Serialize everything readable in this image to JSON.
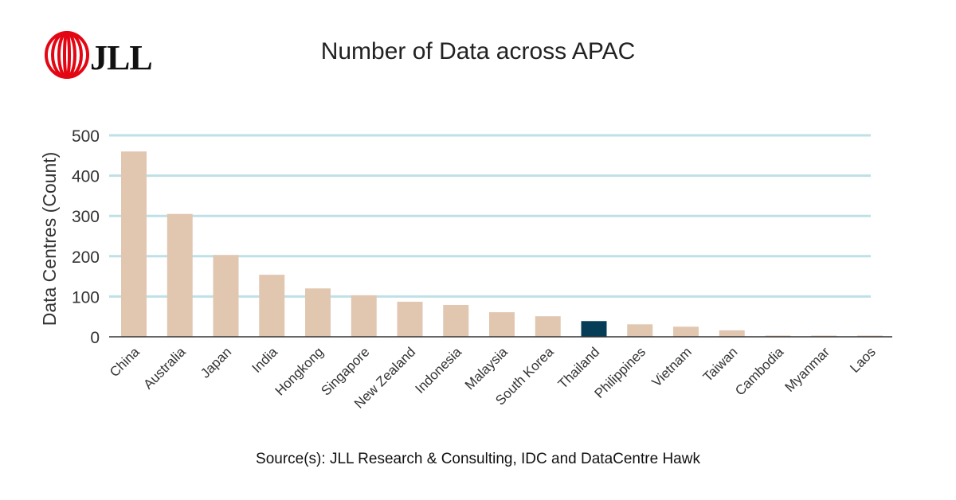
{
  "brand": {
    "logo_text": "JLL",
    "logo_color": "#e30613"
  },
  "chart_data": {
    "type": "bar",
    "title": "Number of Data across APAC",
    "xlabel": "",
    "ylabel": "Data Centres (Count)",
    "ylim": [
      0,
      500
    ],
    "yticks": [
      0,
      100,
      200,
      300,
      400,
      500
    ],
    "grid": true,
    "categories": [
      "China",
      "Australia",
      "Japan",
      "India",
      "Hongkong",
      "Singapore",
      "New Zealand",
      "Indonesia",
      "Malaysia",
      "South Korea",
      "Thailand",
      "Philippines",
      "Vietnam",
      "Taiwan",
      "Cambodia",
      "Myanmar",
      "Laos"
    ],
    "values": [
      460,
      305,
      203,
      154,
      120,
      103,
      87,
      79,
      61,
      51,
      39,
      31,
      25,
      16,
      3,
      3,
      3
    ],
    "highlight": "Thailand",
    "colors": {
      "bar": "#e2c7b0",
      "highlight": "#063d56",
      "grid": "#bfe0e6",
      "axis": "#333333"
    },
    "source": "Source(s): JLL Research & Consulting, IDC and DataCentre Hawk"
  }
}
